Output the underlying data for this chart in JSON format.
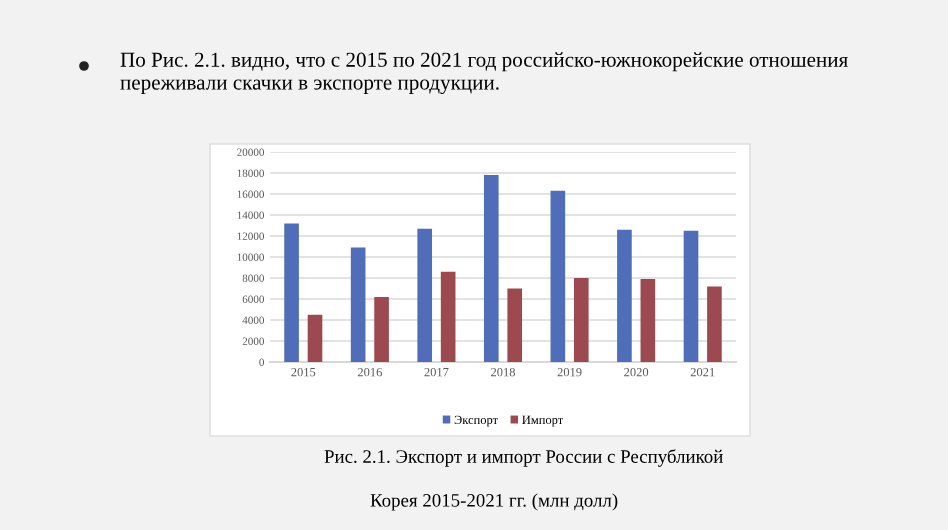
{
  "chart_data": {
    "type": "bar",
    "title": "По Рис. 2.1. видно, что с 2015 по 2021 год российско-южнокорейские отношения переживали скачки в экспорте продукции.",
    "categories": [
      "2015",
      "2016",
      "2017",
      "2018",
      "2019",
      "2020",
      "2021"
    ],
    "series": [
      {
        "name": "Экспорт",
        "color": "#4f6db8",
        "values": [
          13200,
          10900,
          12700,
          17800,
          16300,
          12600,
          12500
        ]
      },
      {
        "name": "Импорт",
        "color": "#9c4a4f",
        "values": [
          4500,
          6200,
          8600,
          7000,
          8000,
          7900,
          7200
        ]
      }
    ],
    "ylim": [
      0,
      20000
    ],
    "yticks": [
      0,
      2000,
      4000,
      6000,
      8000,
      10000,
      12000,
      14000,
      16000,
      18000,
      20000
    ],
    "grid": "y",
    "legend": "bottom",
    "annotations": [
      "Рис. 2.1. Экспорт и импорт России с Республикой",
      "Корея 2015-2021 гг. (млн долл)"
    ]
  }
}
